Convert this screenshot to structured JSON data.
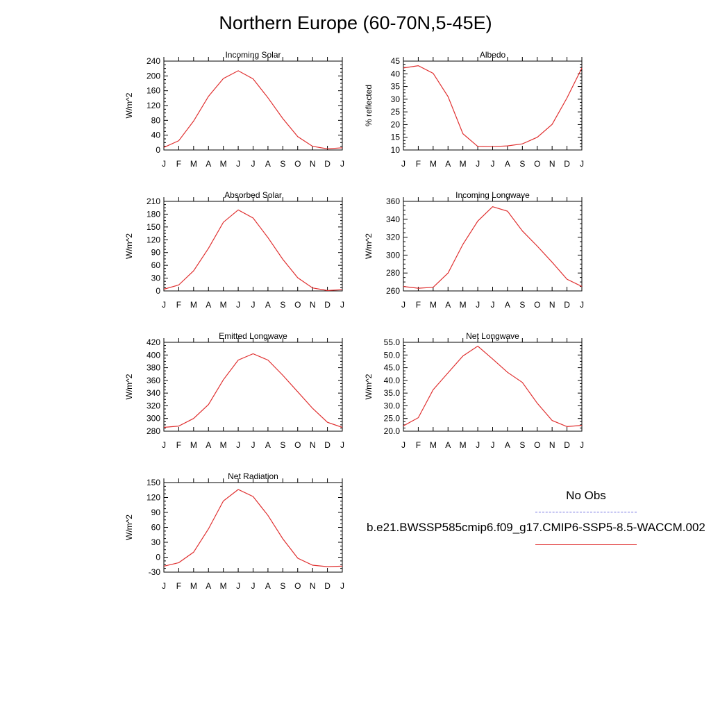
{
  "page": {
    "title": "Northern Europe (60-70N,5-45E)"
  },
  "legend": {
    "obs_label": "No Obs",
    "model_label": "b.e21.BWSSP585cmip6.f09_g17.CMIP6-SSP5-8.5-WACCM.002",
    "obs_color": "#7070e0",
    "model_color": "#e03030"
  },
  "chart_data": [
    {
      "type": "line",
      "title": "Incoming Solar",
      "ylabel": "W/m^2",
      "categories": [
        "J",
        "F",
        "M",
        "A",
        "M",
        "J",
        "J",
        "A",
        "S",
        "O",
        "N",
        "D",
        "J"
      ],
      "ylim": [
        0,
        240
      ],
      "yticks": [
        0,
        40,
        80,
        120,
        160,
        200,
        240
      ],
      "series": [
        {
          "color": "#e03030",
          "values": [
            7,
            25,
            78,
            145,
            193,
            214,
            192,
            141,
            85,
            36,
            10,
            3,
            6
          ]
        }
      ]
    },
    {
      "type": "line",
      "title": "Albedo",
      "ylabel": "% reflected",
      "categories": [
        "J",
        "F",
        "M",
        "A",
        "M",
        "J",
        "J",
        "A",
        "S",
        "O",
        "N",
        "D",
        "J"
      ],
      "ylim": [
        10,
        45
      ],
      "yticks": [
        10,
        15,
        20,
        25,
        30,
        35,
        40,
        45
      ],
      "series": [
        {
          "color": "#e03030",
          "values": [
            42.3,
            43.2,
            40.2,
            31,
            16.4,
            11.4,
            11.3,
            11.6,
            12.4,
            15,
            20.1,
            30.5,
            42.3
          ]
        }
      ]
    },
    {
      "type": "line",
      "title": "Absorbed Solar",
      "ylabel": "W/m^2",
      "categories": [
        "J",
        "F",
        "M",
        "A",
        "M",
        "J",
        "J",
        "A",
        "S",
        "O",
        "N",
        "D",
        "J"
      ],
      "ylim": [
        0,
        210
      ],
      "yticks": [
        0,
        30,
        60,
        90,
        120,
        150,
        180,
        210
      ],
      "series": [
        {
          "color": "#e03030",
          "values": [
            4,
            14,
            47,
            100,
            161,
            190,
            171,
            125,
            74,
            31,
            7,
            1,
            3
          ]
        }
      ]
    },
    {
      "type": "line",
      "title": "Incoming Longwave",
      "ylabel": "W/m^2",
      "categories": [
        "J",
        "F",
        "M",
        "A",
        "M",
        "J",
        "J",
        "A",
        "S",
        "O",
        "N",
        "D",
        "J"
      ],
      "ylim": [
        260,
        360
      ],
      "yticks": [
        260,
        280,
        300,
        320,
        340,
        360
      ],
      "series": [
        {
          "color": "#e03030",
          "values": [
            265,
            263,
            264,
            280,
            312,
            338,
            354,
            349,
            327,
            310,
            292,
            273,
            265
          ]
        }
      ]
    },
    {
      "type": "line",
      "title": "Emitted Longwave",
      "ylabel": "W/m^2",
      "categories": [
        "J",
        "F",
        "M",
        "A",
        "M",
        "J",
        "J",
        "A",
        "S",
        "O",
        "N",
        "D",
        "J"
      ],
      "ylim": [
        280,
        420
      ],
      "yticks": [
        280,
        300,
        320,
        340,
        360,
        380,
        400,
        420
      ],
      "series": [
        {
          "color": "#e03030",
          "values": [
            286,
            288,
            300,
            322,
            361,
            392,
            402,
            392,
            368,
            342,
            316,
            294,
            286
          ]
        }
      ]
    },
    {
      "type": "line",
      "title": "Net Longwave",
      "ylabel": "W/m^2",
      "categories": [
        "J",
        "F",
        "M",
        "A",
        "M",
        "J",
        "J",
        "A",
        "S",
        "O",
        "N",
        "D",
        "J"
      ],
      "ylim": [
        20,
        55
      ],
      "yticks": [
        20.0,
        25.0,
        30.0,
        35.0,
        40.0,
        45.0,
        50.0,
        55.0
      ],
      "tick_decimals": 1,
      "series": [
        {
          "color": "#e03030",
          "values": [
            22.1,
            25.3,
            36.3,
            43,
            49.6,
            53.5,
            48.4,
            43.2,
            39.2,
            31,
            24.2,
            21.8,
            22.3
          ]
        }
      ]
    },
    {
      "type": "line",
      "title": "Net Radiation",
      "ylabel": "W/m^2",
      "categories": [
        "J",
        "F",
        "M",
        "A",
        "M",
        "J",
        "J",
        "A",
        "S",
        "O",
        "N",
        "D",
        "J"
      ],
      "ylim": [
        -30,
        150
      ],
      "yticks": [
        -30,
        0,
        30,
        60,
        90,
        120,
        150
      ],
      "series": [
        {
          "color": "#e03030",
          "values": [
            -18,
            -11,
            10,
            57,
            113,
            136,
            122,
            84,
            37,
            -2,
            -16,
            -19,
            -18
          ]
        }
      ]
    }
  ]
}
